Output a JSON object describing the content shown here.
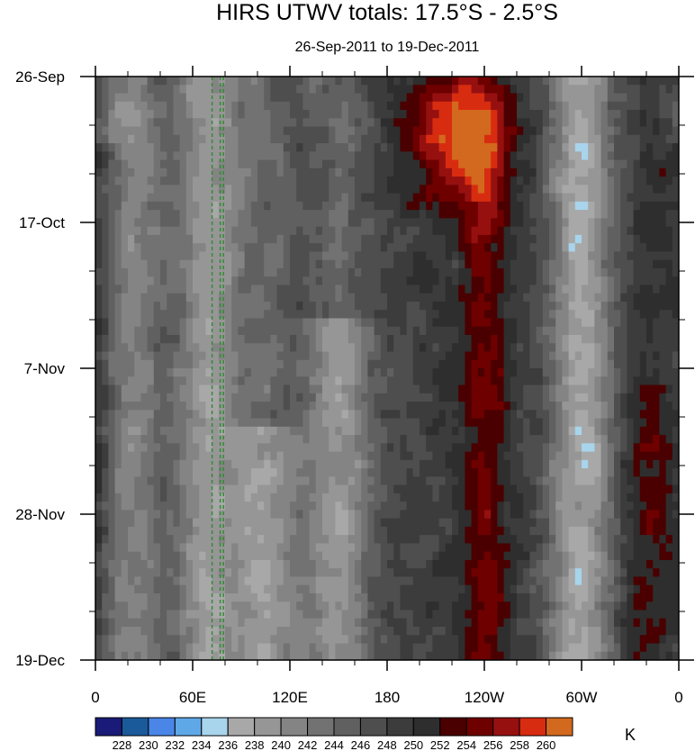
{
  "chart_data": {
    "type": "heatmap",
    "title": "HIRS UTWV totals: 17.5°S - 2.5°S",
    "subtitle": "26-Sep-2011 to 19-Dec-2011",
    "x_axis": {
      "labels": [
        "0",
        "60E",
        "120E",
        "180",
        "120W",
        "60W",
        "0"
      ],
      "values": [
        0,
        60,
        120,
        180,
        240,
        300,
        360
      ],
      "range": [
        0,
        360
      ],
      "units": "degrees longitude east"
    },
    "y_axis": {
      "labels": [
        "26-Sep",
        "17-Oct",
        "7-Nov",
        "28-Nov",
        "19-Dec"
      ],
      "values": [
        0,
        21,
        42,
        63,
        84
      ],
      "range": [
        0,
        84
      ],
      "units": "days since 26-Sep-2011",
      "inverted": true
    },
    "colorbar": {
      "levels": [
        228,
        230,
        232,
        234,
        236,
        238,
        240,
        242,
        244,
        246,
        248,
        250,
        252,
        254,
        256,
        258,
        260
      ],
      "colors": [
        "#1a1a78",
        "#1a5a9a",
        "#4a86e8",
        "#5fa8e8",
        "#a8d4ec",
        "#a8a8a8",
        "#969696",
        "#848484",
        "#727272",
        "#606060",
        "#4e4e4e",
        "#3c3c3c",
        "#2e2e2e",
        "#4a0000",
        "#6e0000",
        "#961010",
        "#d82c10",
        "#d2691e"
      ],
      "units": "K"
    },
    "features": [
      {
        "type": "cold",
        "lon": 20,
        "day_start": 0,
        "day_end": 84,
        "intensity": 0.8
      },
      {
        "type": "cold",
        "lon": 70,
        "day_start": 0,
        "day_end": 84,
        "intensity": 0.9
      },
      {
        "type": "cold",
        "lon": 105,
        "day_start": 50,
        "day_end": 84,
        "intensity": 0.9
      },
      {
        "type": "cold",
        "lon": 150,
        "day_start": 35,
        "day_end": 84,
        "intensity": 0.9
      },
      {
        "type": "cold",
        "lon": 300,
        "day_start": 0,
        "day_end": 84,
        "intensity": 1.0
      },
      {
        "type": "warm",
        "lon": 225,
        "day": 8,
        "intensity": 1.0
      },
      {
        "type": "warm",
        "lon": 240,
        "day_start": 10,
        "day_end": 84,
        "intensity": 0.8
      },
      {
        "type": "warm",
        "lon": 340,
        "day_start": 45,
        "day_end": 84,
        "intensity": 0.6
      },
      {
        "type": "warm",
        "lon": 5,
        "day_start": 10,
        "day_end": 80,
        "intensity": 0.5
      }
    ],
    "markers": [
      {
        "type": "dashed-line",
        "lon": 72
      },
      {
        "type": "dashed-line",
        "lon": 77
      },
      {
        "type": "dashed-line",
        "lon": 79
      }
    ]
  }
}
